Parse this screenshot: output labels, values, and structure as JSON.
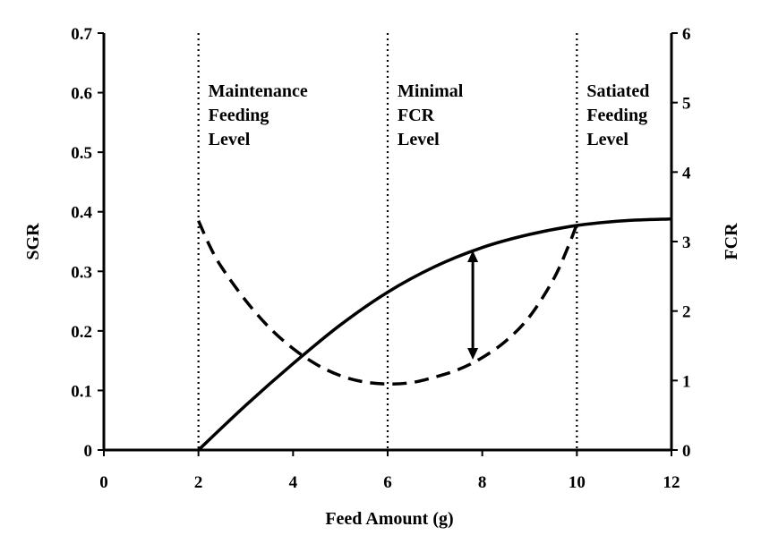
{
  "chart_data": {
    "type": "line",
    "xlabel": "Feed Amount (g)",
    "ylabel_left": "SGR",
    "ylabel_right": "FCR",
    "xlim": [
      0,
      12
    ],
    "ylim_left": [
      0,
      0.7
    ],
    "ylim_right": [
      0,
      6
    ],
    "x_ticks": [
      "0",
      "2",
      "4",
      "6",
      "8",
      "10",
      "12"
    ],
    "y_left_ticks": [
      "0",
      "0.1",
      "0.2",
      "0.3",
      "0.4",
      "0.5",
      "0.6",
      "0.7"
    ],
    "y_right_ticks": [
      "0",
      "1",
      "2",
      "3",
      "4",
      "5",
      "6"
    ],
    "grid": false,
    "series": [
      {
        "axis": "left",
        "style": "solid",
        "x": [
          2,
          3,
          4,
          5,
          6,
          7,
          8,
          9,
          10,
          11,
          12
        ],
        "y": [
          0.0,
          0.075,
          0.145,
          0.21,
          0.265,
          0.308,
          0.34,
          0.362,
          0.377,
          0.385,
          0.388
        ]
      },
      {
        "axis": "right",
        "style": "dashed",
        "x": [
          2.0,
          2.25,
          2.5,
          3.0,
          3.5,
          4.0,
          4.5,
          5.0,
          5.5,
          6.0,
          6.5,
          7.0,
          7.5,
          8.0,
          8.5,
          9.0,
          9.5,
          9.8,
          10.0
        ],
        "y": [
          3.3,
          2.92,
          2.62,
          2.15,
          1.76,
          1.46,
          1.23,
          1.07,
          0.98,
          0.95,
          0.97,
          1.05,
          1.16,
          1.33,
          1.57,
          1.92,
          2.45,
          2.9,
          3.25
        ]
      }
    ],
    "vertical_lines": [
      {
        "x": 2,
        "label_lines": [
          "Maintenance",
          "Feeding",
          "Level"
        ]
      },
      {
        "x": 6,
        "label_lines": [
          "Minimal",
          "FCR",
          "Level"
        ]
      },
      {
        "x": 10,
        "label_lines": [
          "Satiated",
          "Feeding",
          "Level"
        ]
      }
    ],
    "arrow": {
      "x": 7.8,
      "from_fcr": 1.3,
      "to_sgr": 0.335
    }
  }
}
